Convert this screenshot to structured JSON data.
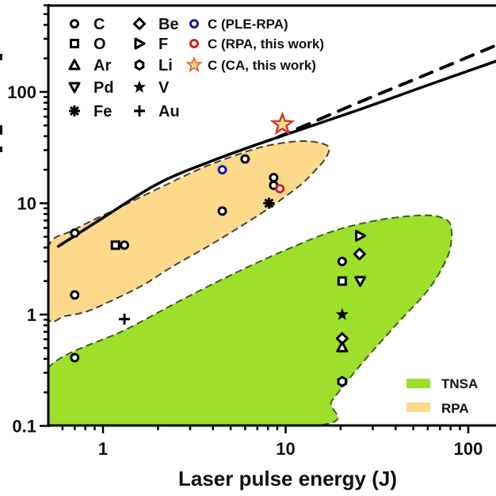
{
  "chart_data": {
    "type": "scatter",
    "title": "",
    "xlabel": "Laser pulse energy (J)",
    "ylabel": "",
    "xscale": "log",
    "yscale": "log",
    "xlim": [
      0.5,
      134
    ],
    "ylim": [
      0.1,
      620
    ],
    "grid": false,
    "x_ticks": [
      {
        "value": 1,
        "label": "1"
      },
      {
        "value": 10,
        "label": "10"
      },
      {
        "value": 100,
        "label": "100"
      }
    ],
    "y_ticks": [
      {
        "value": 0.1,
        "label": "0.1"
      },
      {
        "value": 1,
        "label": "1"
      },
      {
        "value": 10,
        "label": "10"
      },
      {
        "value": 100,
        "label": "100"
      }
    ],
    "legend_markers": [
      {
        "label": "C",
        "marker": "circle",
        "color": "#000000"
      },
      {
        "label": "O",
        "marker": "square",
        "color": "#000000"
      },
      {
        "label": "Ar",
        "marker": "triangle-up",
        "color": "#000000"
      },
      {
        "label": "Pd",
        "marker": "triangle-down",
        "color": "#000000"
      },
      {
        "label": "Fe",
        "marker": "asterisk",
        "color": "#000000"
      },
      {
        "label": "Be",
        "marker": "diamond",
        "color": "#000000"
      },
      {
        "label": "F",
        "marker": "triangle-right",
        "color": "#000000"
      },
      {
        "label": "Li",
        "marker": "hexagon",
        "color": "#000000"
      },
      {
        "label": "V",
        "marker": "star-filled",
        "color": "#000000"
      },
      {
        "label": "Au",
        "marker": "plus",
        "color": "#000000"
      },
      {
        "label": "C (PLE-RPA)",
        "marker": "circle",
        "color": "#1a1aa6"
      },
      {
        "label": "C (RPA, this work)",
        "marker": "circle",
        "color": "#d42020"
      },
      {
        "label": "C (CA, this work)",
        "marker": "star-open",
        "color": "#e0522a"
      }
    ],
    "legend_regions": [
      {
        "label": "TNSA",
        "color": "#9ddf2a"
      },
      {
        "label": "RPA",
        "color": "#fcd98b"
      }
    ],
    "legend_placement": "top-left (markers), bottom-right (regions)",
    "points": [
      {
        "series": "C",
        "marker": "circle",
        "color": "#000000",
        "x": 0.7,
        "y": 5.4
      },
      {
        "series": "C",
        "marker": "circle",
        "color": "#000000",
        "x": 0.7,
        "y": 1.5
      },
      {
        "series": "C",
        "marker": "circle",
        "color": "#000000",
        "x": 0.7,
        "y": 0.41
      },
      {
        "series": "O",
        "marker": "square",
        "color": "#000000",
        "x": 1.17,
        "y": 4.2
      },
      {
        "series": "C",
        "marker": "circle",
        "color": "#000000",
        "x": 1.31,
        "y": 4.2
      },
      {
        "series": "Au",
        "marker": "plus",
        "color": "#000000",
        "x": 1.31,
        "y": 0.91
      },
      {
        "series": "C",
        "marker": "circle",
        "color": "#000000",
        "x": 4.5,
        "y": 8.5
      },
      {
        "series": "C (PLE-RPA)",
        "marker": "circle",
        "color": "#1a1aa6",
        "x": 4.5,
        "y": 20
      },
      {
        "series": "C",
        "marker": "circle",
        "color": "#000000",
        "x": 6.0,
        "y": 25
      },
      {
        "series": "C",
        "marker": "circle",
        "color": "#000000",
        "x": 8.6,
        "y": 17
      },
      {
        "series": "C",
        "marker": "circle",
        "color": "#000000",
        "x": 8.6,
        "y": 14.5
      },
      {
        "series": "C (RPA, this work)",
        "marker": "circle",
        "color": "#d42020",
        "x": 9.3,
        "y": 13.5
      },
      {
        "series": "Fe",
        "marker": "asterisk",
        "color": "#000000",
        "x": 8.1,
        "y": 10
      },
      {
        "series": "C (CA, this work)",
        "marker": "star-open",
        "color": "#e0522a",
        "x": 9.6,
        "y": 51
      },
      {
        "series": "C",
        "marker": "circle",
        "color": "#000000",
        "x": 20.4,
        "y": 3.0
      },
      {
        "series": "O",
        "marker": "square",
        "color": "#000000",
        "x": 20.4,
        "y": 2.0
      },
      {
        "series": "V",
        "marker": "star-filled",
        "color": "#000000",
        "x": 20.4,
        "y": 1.0
      },
      {
        "series": "Be",
        "marker": "diamond",
        "color": "#000000",
        "x": 20.4,
        "y": 0.61
      },
      {
        "series": "Ar",
        "marker": "triangle-up",
        "color": "#000000",
        "x": 20.4,
        "y": 0.51
      },
      {
        "series": "Li",
        "marker": "hexagon",
        "color": "#000000",
        "x": 20.4,
        "y": 0.25
      },
      {
        "series": "F",
        "marker": "triangle-right",
        "color": "#000000",
        "x": 25.6,
        "y": 5.1
      },
      {
        "series": "Be",
        "marker": "diamond",
        "color": "#000000",
        "x": 25.4,
        "y": 3.5
      },
      {
        "series": "Pd",
        "marker": "triangle-down",
        "color": "#000000",
        "x": 25.6,
        "y": 2.0
      }
    ],
    "lines": [
      {
        "name": "scaling-solid",
        "style": "solid",
        "color": "#000000",
        "x": [
          0.57,
          1.0,
          2.0,
          4.05,
          9.0,
          24.5,
          60,
          142
        ],
        "y": [
          4.1,
          7.4,
          15,
          24.4,
          39,
          68,
          115,
          189
        ]
      },
      {
        "name": "scaling-dashed",
        "style": "dashed",
        "color": "#000000",
        "x": [
          9.0,
          24.5,
          60,
          142
        ],
        "y": [
          39,
          79,
          145,
          262
        ]
      }
    ],
    "regions": [
      {
        "label": "RPA",
        "color": "#fcd98b",
        "edge": "#4a4030",
        "x": [
          0.5,
          0.7,
          1.22,
          2.0,
          3.31,
          5.0,
          7.4,
          10.5,
          13.4,
          16.2,
          17.3,
          16.6,
          14.8,
          12.0,
          8.15,
          5.5,
          3.66,
          2.4,
          1.65,
          1.1,
          0.82,
          0.62,
          0.5
        ],
        "y": [
          3.96,
          5.8,
          9.1,
          13.5,
          20,
          26,
          32,
          35.5,
          36,
          34,
          31,
          25.5,
          20.4,
          14.5,
          9.1,
          6.0,
          4.0,
          2.7,
          1.83,
          1.32,
          1.07,
          0.97,
          0.95
        ]
      },
      {
        "label": "TNSA",
        "color": "#9ddf2a",
        "edge": "#3f5f22",
        "x": [
          0.5,
          1.35,
          2.8,
          5.4,
          10.0,
          18.1,
          30,
          45,
          60,
          72,
          80,
          80.5,
          75,
          60,
          40,
          26,
          18,
          14.1,
          0.5
        ],
        "y": [
          0.33,
          0.74,
          1.4,
          2.4,
          3.8,
          5.6,
          6.9,
          7.6,
          7.8,
          7.4,
          6.4,
          4.4,
          3.0,
          1.65,
          0.8,
          0.36,
          0.17,
          0.1,
          0.1
        ]
      }
    ]
  }
}
